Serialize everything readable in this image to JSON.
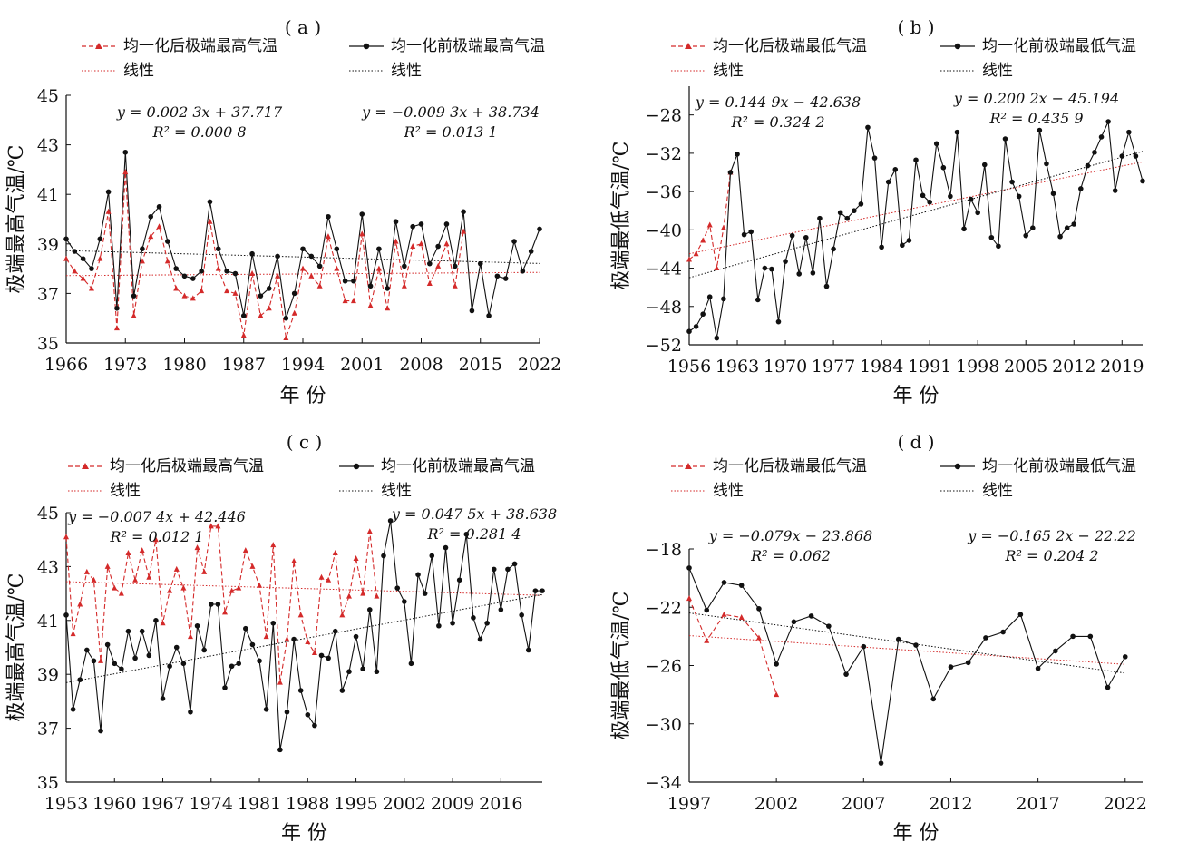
{
  "chart_data": [
    {
      "type": "line",
      "title": "( a )",
      "xlabel": "年 份",
      "ylabel": "极端最高气温/℃",
      "xlim": [
        1966,
        2022
      ],
      "ylim": [
        35,
        45
      ],
      "xticks": [
        "1966",
        "1973",
        "1980",
        "1987",
        "1994",
        "2001",
        "2008",
        "2015",
        "2022"
      ],
      "yticks": [
        "35",
        "37",
        "39",
        "41",
        "43",
        "45"
      ],
      "legend": {
        "after": "均一化后极端最高气温",
        "before": "均一化前极端最高气温",
        "after_trend": "线性",
        "before_trend": "线性"
      },
      "eq_after": {
        "line1": "y = 0.002 3x + 37.717",
        "line2": "R² = 0.000 8"
      },
      "eq_before": {
        "line1": "y = −0.009 3x + 38.734",
        "line2": "R² = 0.013 1"
      },
      "series": [
        {
          "name": "均一化前极端最高气温",
          "x": [
            1966,
            1967,
            1968,
            1969,
            1970,
            1971,
            1972,
            1973,
            1974,
            1975,
            1976,
            1977,
            1978,
            1979,
            1980,
            1981,
            1982,
            1983,
            1984,
            1985,
            1986,
            1987,
            1988,
            1989,
            1990,
            1991,
            1992,
            1993,
            1994,
            1995,
            1996,
            1997,
            1998,
            1999,
            2000,
            2001,
            2002,
            2003,
            2004,
            2005,
            2006,
            2007,
            2008,
            2009,
            2010,
            2011,
            2012,
            2013,
            2014,
            2015,
            2016,
            2017,
            2018,
            2019,
            2020,
            2021,
            2022
          ],
          "values": [
            39.2,
            38.7,
            38.4,
            38.0,
            39.2,
            41.1,
            36.4,
            42.7,
            36.9,
            38.8,
            40.1,
            40.5,
            39.1,
            38.0,
            37.7,
            37.6,
            37.9,
            40.7,
            38.8,
            37.9,
            37.8,
            36.1,
            38.6,
            36.9,
            37.2,
            38.5,
            36.0,
            37.0,
            38.8,
            38.5,
            38.1,
            40.1,
            38.8,
            37.5,
            37.5,
            40.2,
            37.3,
            38.8,
            37.2,
            39.9,
            38.1,
            39.7,
            39.8,
            38.2,
            38.9,
            39.8,
            38.1,
            40.3,
            36.3,
            38.2,
            36.1,
            37.7,
            37.6,
            39.1,
            37.9,
            38.7,
            39.6
          ]
        },
        {
          "name": "均一化后极端最高气温",
          "x": [
            1966,
            1967,
            1968,
            1969,
            1970,
            1971,
            1972,
            1973,
            1974,
            1975,
            1976,
            1977,
            1978,
            1979,
            1980,
            1981,
            1982,
            1983,
            1984,
            1985,
            1986,
            1987,
            1988,
            1989,
            1990,
            1991,
            1992,
            1993,
            1994,
            1995,
            1996,
            1997,
            1998,
            1999,
            2000,
            2001,
            2002,
            2003,
            2004,
            2005,
            2006,
            2007,
            2008,
            2009,
            2010,
            2011,
            2012,
            2013
          ],
          "values": [
            38.4,
            37.9,
            37.6,
            37.2,
            38.4,
            40.3,
            35.6,
            41.9,
            36.1,
            38.3,
            39.3,
            39.7,
            38.3,
            37.2,
            36.9,
            36.8,
            37.1,
            39.9,
            38.0,
            37.1,
            37.0,
            35.3,
            37.8,
            36.1,
            36.4,
            37.7,
            35.2,
            36.2,
            38.0,
            37.7,
            37.3,
            39.3,
            38.0,
            36.7,
            36.7,
            39.4,
            36.5,
            38.0,
            36.4,
            39.1,
            37.3,
            38.9,
            39.0,
            37.4,
            38.1,
            39.0,
            37.3,
            39.5
          ]
        }
      ],
      "trend_after": {
        "x": [
          1966,
          2022
        ],
        "y": [
          37.72,
          37.85
        ]
      },
      "trend_before": {
        "x": [
          1966,
          2022
        ],
        "y": [
          38.73,
          38.21
        ]
      }
    },
    {
      "type": "line",
      "title": "( b )",
      "xlabel": "年 份",
      "ylabel": "极端最低气温/℃",
      "xlim": [
        1956,
        2022
      ],
      "ylim": [
        -52,
        -25
      ],
      "xticks": [
        "1956",
        "1963",
        "1970",
        "1977",
        "1984",
        "1991",
        "1998",
        "2005",
        "2012",
        "2019"
      ],
      "yticks": [
        "-52",
        "-48",
        "-44",
        "-40",
        "-36",
        "-32",
        "-28"
      ],
      "legend": {
        "after": "均一化后极端最低气温",
        "before": "均一化前极端最低气温",
        "after_trend": "线性",
        "before_trend": "线性"
      },
      "eq_after": {
        "line1": "y = 0.144 9x − 42.638",
        "line2": "R² = 0.324 2"
      },
      "eq_before": {
        "line1": "y = 0.200 2x − 45.194",
        "line2": "R² = 0.435 9"
      },
      "series": [
        {
          "name": "均一化前极端最低气温",
          "x": [
            1956,
            1957,
            1958,
            1959,
            1960,
            1961,
            1962,
            1963,
            1964,
            1965,
            1966,
            1967,
            1968,
            1969,
            1970,
            1971,
            1972,
            1973,
            1974,
            1975,
            1976,
            1977,
            1978,
            1979,
            1980,
            1981,
            1982,
            1983,
            1984,
            1985,
            1986,
            1987,
            1988,
            1989,
            1990,
            1991,
            1992,
            1993,
            1994,
            1995,
            1996,
            1997,
            1998,
            1999,
            2000,
            2001,
            2002,
            2003,
            2004,
            2005,
            2006,
            2007,
            2008,
            2009,
            2010,
            2011,
            2012,
            2013,
            2014,
            2015,
            2016,
            2017,
            2018,
            2019,
            2020,
            2021,
            2022
          ],
          "values": [
            -50.6,
            -50.1,
            -48.8,
            -47.0,
            -51.3,
            -47.2,
            -34.0,
            -32.1,
            -40.5,
            -40.2,
            -47.3,
            -44.0,
            -44.1,
            -49.6,
            -43.3,
            -40.6,
            -44.6,
            -40.8,
            -44.5,
            -38.8,
            -45.9,
            -42.0,
            -38.2,
            -38.8,
            -38.0,
            -37.3,
            -29.3,
            -32.5,
            -41.8,
            -35.0,
            -33.7,
            -41.6,
            -41.1,
            -32.7,
            -36.4,
            -37.1,
            -31.0,
            -33.5,
            -36.5,
            -29.8,
            -39.9,
            -36.8,
            -38.2,
            -33.2,
            -40.8,
            -41.7,
            -30.5,
            -35.0,
            -36.5,
            -40.6,
            -39.8,
            -29.6,
            -33.1,
            -36.2,
            -40.7,
            -39.8,
            -39.4,
            -35.7,
            -33.3,
            -31.9,
            -30.3,
            -28.7,
            -35.9,
            -32.3,
            -29.8,
            -32.3,
            -34.9
          ]
        },
        {
          "name": "均一化后极端最低气温",
          "x": [
            1956,
            1957,
            1958,
            1959,
            1960,
            1961,
            1962
          ],
          "values": [
            -43.1,
            -42.5,
            -41.1,
            -39.5,
            -44.0,
            -39.8,
            -34.0
          ]
        }
      ],
      "trend_after": {
        "x": [
          1956,
          2022
        ],
        "y": [
          -42.5,
          -32.9
        ]
      },
      "trend_before": {
        "x": [
          1956,
          2022
        ],
        "y": [
          -45.0,
          -31.8
        ]
      }
    },
    {
      "type": "line",
      "title": "( c )",
      "xlabel": "年 份",
      "ylabel": "极端最高气温/℃",
      "xlim": [
        1953,
        2022
      ],
      "ylim": [
        35,
        45
      ],
      "xticks": [
        "1953",
        "1960",
        "1967",
        "1974",
        "1981",
        "1988",
        "1995",
        "2002",
        "2009",
        "2016"
      ],
      "yticks": [
        "35",
        "37",
        "39",
        "41",
        "43",
        "45"
      ],
      "legend": {
        "after": "均一化后极端最高气温",
        "before": "均一化前极端最高气温",
        "after_trend": "线性",
        "before_trend": "线性"
      },
      "eq_after": {
        "line1": "y = −0.007 4x + 42.446",
        "line2": "R² = 0.012 1"
      },
      "eq_before": {
        "line1": "y = 0.047 5x + 38.638",
        "line2": "R² = 0.281 4"
      },
      "series": [
        {
          "name": "均一化前极端最高气温",
          "x": [
            1953,
            1954,
            1955,
            1956,
            1957,
            1958,
            1959,
            1960,
            1961,
            1962,
            1963,
            1964,
            1965,
            1966,
            1967,
            1968,
            1969,
            1970,
            1971,
            1972,
            1973,
            1974,
            1975,
            1976,
            1977,
            1978,
            1979,
            1980,
            1981,
            1982,
            1983,
            1984,
            1985,
            1986,
            1987,
            1988,
            1989,
            1990,
            1991,
            1992,
            1993,
            1994,
            1995,
            1996,
            1997,
            1998,
            1999,
            2000,
            2001,
            2002,
            2003,
            2004,
            2005,
            2006,
            2007,
            2008,
            2009,
            2010,
            2011,
            2012,
            2013,
            2014,
            2015,
            2016,
            2017,
            2018,
            2019,
            2020,
            2021,
            2022
          ],
          "values": [
            41.2,
            37.7,
            38.8,
            39.9,
            39.5,
            36.9,
            40.1,
            39.4,
            39.2,
            40.6,
            39.6,
            40.6,
            39.7,
            41.0,
            38.1,
            39.3,
            40.0,
            39.4,
            37.6,
            40.8,
            39.9,
            41.6,
            41.6,
            38.5,
            39.3,
            39.4,
            40.7,
            40.1,
            39.5,
            37.7,
            40.9,
            36.2,
            37.6,
            40.3,
            38.4,
            37.5,
            37.1,
            39.7,
            39.6,
            40.6,
            38.4,
            39.1,
            40.4,
            39.2,
            41.4,
            39.1,
            43.4,
            44.7,
            42.2,
            41.7,
            39.4,
            42.7,
            42.0,
            43.4,
            40.8,
            43.7,
            40.9,
            42.5,
            44.2,
            41.1,
            40.3,
            40.9,
            42.9,
            41.4,
            42.9,
            43.1,
            41.2,
            39.9,
            42.1,
            42.1
          ]
        },
        {
          "name": "均一化后极端最高气温",
          "x": [
            1953,
            1954,
            1955,
            1956,
            1957,
            1958,
            1959,
            1960,
            1961,
            1962,
            1963,
            1964,
            1965,
            1966,
            1967,
            1968,
            1969,
            1970,
            1971,
            1972,
            1973,
            1974,
            1975,
            1976,
            1977,
            1978,
            1979,
            1980,
            1981,
            1982,
            1983,
            1984,
            1985,
            1986,
            1987,
            1988,
            1989,
            1990,
            1991,
            1992,
            1993,
            1994,
            1995,
            1996,
            1997,
            1998
          ],
          "values": [
            44.1,
            40.5,
            41.6,
            42.8,
            42.5,
            39.5,
            43.0,
            42.2,
            42.0,
            43.5,
            42.5,
            43.6,
            42.6,
            44.0,
            40.9,
            42.1,
            42.9,
            42.2,
            40.4,
            43.7,
            42.8,
            44.5,
            44.5,
            41.3,
            42.1,
            42.2,
            43.6,
            43.0,
            42.3,
            40.4,
            43.8,
            38.7,
            40.3,
            43.2,
            41.2,
            40.2,
            39.8,
            42.6,
            42.5,
            43.5,
            41.2,
            41.9,
            43.3,
            42.0,
            44.3,
            41.9
          ]
        }
      ],
      "trend_after": {
        "x": [
          1953,
          2022
        ],
        "y": [
          42.44,
          41.93
        ]
      },
      "trend_before": {
        "x": [
          1953,
          2022
        ],
        "y": [
          38.69,
          41.96
        ]
      }
    },
    {
      "type": "line",
      "title": "( d )",
      "xlabel": "年 份",
      "ylabel": "极端最低气温/℃",
      "xlim": [
        1997,
        2023
      ],
      "ylim": [
        -34,
        -18
      ],
      "xticks": [
        "1997",
        "2002",
        "2007",
        "2012",
        "2017",
        "2022"
      ],
      "yticks": [
        "-34",
        "-30",
        "-26",
        "-22",
        "-18"
      ],
      "legend": {
        "after": "均一化后极端最低气温",
        "before": "均一化前极端最低气温",
        "after_trend": "线性",
        "before_trend": "线性"
      },
      "eq_after": {
        "line1": "y = −0.079x − 23.868",
        "line2": "R² = 0.062"
      },
      "eq_before": {
        "line1": "y = −0.165 2x − 22.22",
        "line2": "R² = 0.204 2"
      },
      "series": [
        {
          "name": "均一化前极端最低气温",
          "x": [
            1997,
            1998,
            1999,
            2000,
            2001,
            2002,
            2003,
            2004,
            2005,
            2006,
            2007,
            2008,
            2009,
            2010,
            2011,
            2012,
            2013,
            2014,
            2015,
            2016,
            2017,
            2018,
            2019,
            2020,
            2021,
            2022
          ],
          "values": [
            -19.3,
            -22.2,
            -20.3,
            -20.5,
            -22.1,
            -25.9,
            -23.0,
            -22.6,
            -23.3,
            -26.6,
            -24.7,
            -32.7,
            -24.2,
            -24.6,
            -28.3,
            -26.1,
            -25.8,
            -24.1,
            -23.7,
            -22.5,
            -26.2,
            -25.0,
            -24.0,
            -24.0,
            -27.5,
            -25.4
          ]
        },
        {
          "name": "均一化后极端最低气温",
          "x": [
            1997,
            1998,
            1999,
            2000,
            2001,
            2002
          ],
          "values": [
            -21.4,
            -24.3,
            -22.5,
            -22.7,
            -24.1,
            -28.0
          ]
        }
      ],
      "trend_after": {
        "x": [
          1997,
          2022
        ],
        "y": [
          -23.95,
          -25.92
        ]
      },
      "trend_before": {
        "x": [
          1997,
          2022
        ],
        "y": [
          -22.39,
          -26.52
        ]
      }
    }
  ]
}
